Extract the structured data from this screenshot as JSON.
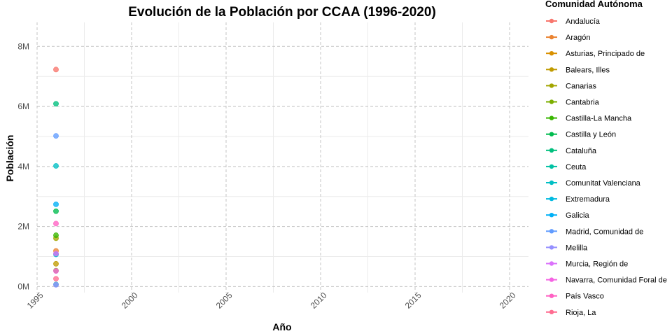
{
  "chart_data": {
    "type": "scatter",
    "title": "Evolución de la Población por CCAA (1996-2020)",
    "xlabel": "Año",
    "ylabel": "Población",
    "xlim": [
      1995,
      2021
    ],
    "ylim": [
      -200000,
      8800000
    ],
    "x_ticks": [
      1995,
      2000,
      2005,
      2010,
      2015,
      2020
    ],
    "x_tick_labels": [
      "1995",
      "2000",
      "2005",
      "2010",
      "2015",
      "2020"
    ],
    "y_ticks": [
      0,
      2000000,
      4000000,
      6000000,
      8000000
    ],
    "y_tick_labels": [
      "0M",
      "2M",
      "4M",
      "6M",
      "8M"
    ],
    "grid": true,
    "legend": {
      "title": "Comunidad Autónoma",
      "position": "right"
    },
    "series": [
      {
        "name": "Andalucía",
        "color": "#F8766D",
        "points": [
          [
            1996,
            7230000
          ]
        ]
      },
      {
        "name": "Aragón",
        "color": "#EA8331",
        "points": [
          [
            1996,
            1190000
          ]
        ]
      },
      {
        "name": "Asturias, Principado de",
        "color": "#D89000",
        "points": [
          [
            1996,
            1090000
          ]
        ]
      },
      {
        "name": "Balears, Illes",
        "color": "#C09B00",
        "points": [
          [
            1996,
            760000
          ]
        ]
      },
      {
        "name": "Canarias",
        "color": "#A3A500",
        "points": [
          [
            1996,
            1610000
          ]
        ]
      },
      {
        "name": "Cantabria",
        "color": "#7CAE00",
        "points": [
          [
            1996,
            530000
          ]
        ]
      },
      {
        "name": "Castilla-La Mancha",
        "color": "#39B600",
        "points": [
          [
            1996,
            1710000
          ]
        ]
      },
      {
        "name": "Castilla y León",
        "color": "#00BB4E",
        "points": [
          [
            1996,
            2510000
          ]
        ]
      },
      {
        "name": "Cataluña",
        "color": "#00BF7D",
        "points": [
          [
            1996,
            6090000
          ]
        ]
      },
      {
        "name": "Ceuta",
        "color": "#00C1A3",
        "points": [
          [
            1996,
            70000
          ]
        ]
      },
      {
        "name": "Comunitat Valenciana",
        "color": "#00BFC4",
        "points": [
          [
            1996,
            4020000
          ]
        ]
      },
      {
        "name": "Extremadura",
        "color": "#00BAE0",
        "points": [
          [
            1996,
            1070000
          ]
        ]
      },
      {
        "name": "Galicia",
        "color": "#00B0F6",
        "points": [
          [
            1996,
            2740000
          ]
        ]
      },
      {
        "name": "Madrid, Comunidad de",
        "color": "#619CFF",
        "points": [
          [
            1996,
            5020000
          ]
        ]
      },
      {
        "name": "Melilla",
        "color": "#9590FF",
        "points": [
          [
            1996,
            60000
          ]
        ]
      },
      {
        "name": "Murcia, Región de",
        "color": "#DB72FB",
        "points": [
          [
            1996,
            1100000
          ]
        ]
      },
      {
        "name": "Navarra, Comunidad Foral de",
        "color": "#F564E3",
        "points": [
          [
            1996,
            520000
          ]
        ]
      },
      {
        "name": "País Vasco",
        "color": "#FF61C3",
        "points": [
          [
            1996,
            2100000
          ]
        ]
      },
      {
        "name": "Rioja, La",
        "color": "#FF6C91",
        "points": [
          [
            1996,
            260000
          ]
        ]
      }
    ]
  }
}
